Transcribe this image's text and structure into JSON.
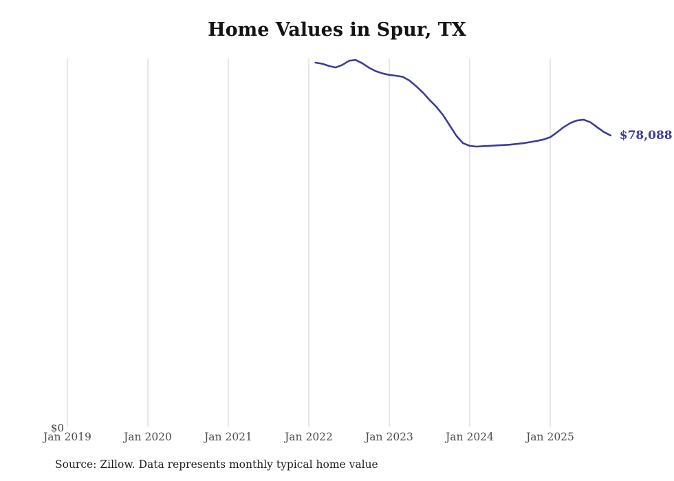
{
  "title": "Home Values in Spur, TX",
  "source_note": "Source: Zillow. Data represents monthly typical home value",
  "end_label": "$78,088",
  "colors": {
    "line": "#3b3b9e",
    "end_label": "#3b3b9e",
    "grid": "#cfcfcf",
    "tick_text": "#4d4d4d",
    "zero_text": "#3c3c3c",
    "title_text": "#141414",
    "source_text": "#1f1f1f"
  },
  "chart_data": {
    "type": "line",
    "title": "Home Values in Spur, TX",
    "xlabel": "",
    "ylabel": "",
    "ylim": [
      0,
      100000
    ],
    "grid": "vertical-only",
    "legend": "none",
    "x_ticks": [
      "Jan 2019",
      "Jan 2020",
      "Jan 2021",
      "Jan 2022",
      "Jan 2023",
      "Jan 2024",
      "Jan 2025"
    ],
    "y_ticks": [
      "$0"
    ],
    "end_value": 78088,
    "series": [
      {
        "name": "Monthly typical home value",
        "points": [
          {
            "date": "2022-02",
            "value": 97600
          },
          {
            "date": "2022-03",
            "value": 97300
          },
          {
            "date": "2022-04",
            "value": 96700
          },
          {
            "date": "2022-05",
            "value": 96300
          },
          {
            "date": "2022-06",
            "value": 97000
          },
          {
            "date": "2022-07",
            "value": 98100
          },
          {
            "date": "2022-08",
            "value": 98300
          },
          {
            "date": "2022-09",
            "value": 97400
          },
          {
            "date": "2022-10",
            "value": 96200
          },
          {
            "date": "2022-11",
            "value": 95300
          },
          {
            "date": "2022-12",
            "value": 94700
          },
          {
            "date": "2023-01",
            "value": 94300
          },
          {
            "date": "2023-02",
            "value": 94100
          },
          {
            "date": "2023-03",
            "value": 93800
          },
          {
            "date": "2023-04",
            "value": 92800
          },
          {
            "date": "2023-05",
            "value": 91300
          },
          {
            "date": "2023-06",
            "value": 89600
          },
          {
            "date": "2023-07",
            "value": 87600
          },
          {
            "date": "2023-08",
            "value": 85800
          },
          {
            "date": "2023-09",
            "value": 83600
          },
          {
            "date": "2023-10",
            "value": 80800
          },
          {
            "date": "2023-11",
            "value": 78000
          },
          {
            "date": "2023-12",
            "value": 76000
          },
          {
            "date": "2024-01",
            "value": 75300
          },
          {
            "date": "2024-02",
            "value": 75100
          },
          {
            "date": "2024-03",
            "value": 75200
          },
          {
            "date": "2024-04",
            "value": 75300
          },
          {
            "date": "2024-05",
            "value": 75400
          },
          {
            "date": "2024-06",
            "value": 75500
          },
          {
            "date": "2024-07",
            "value": 75600
          },
          {
            "date": "2024-08",
            "value": 75800
          },
          {
            "date": "2024-09",
            "value": 76000
          },
          {
            "date": "2024-10",
            "value": 76300
          },
          {
            "date": "2024-11",
            "value": 76600
          },
          {
            "date": "2024-12",
            "value": 77000
          },
          {
            "date": "2025-01",
            "value": 77600
          },
          {
            "date": "2025-02",
            "value": 78900
          },
          {
            "date": "2025-03",
            "value": 80300
          },
          {
            "date": "2025-04",
            "value": 81400
          },
          {
            "date": "2025-05",
            "value": 82100
          },
          {
            "date": "2025-06",
            "value": 82300
          },
          {
            "date": "2025-07",
            "value": 81600
          },
          {
            "date": "2025-08",
            "value": 80300
          },
          {
            "date": "2025-09",
            "value": 79000
          },
          {
            "date": "2025-10",
            "value": 78088
          }
        ]
      }
    ]
  }
}
